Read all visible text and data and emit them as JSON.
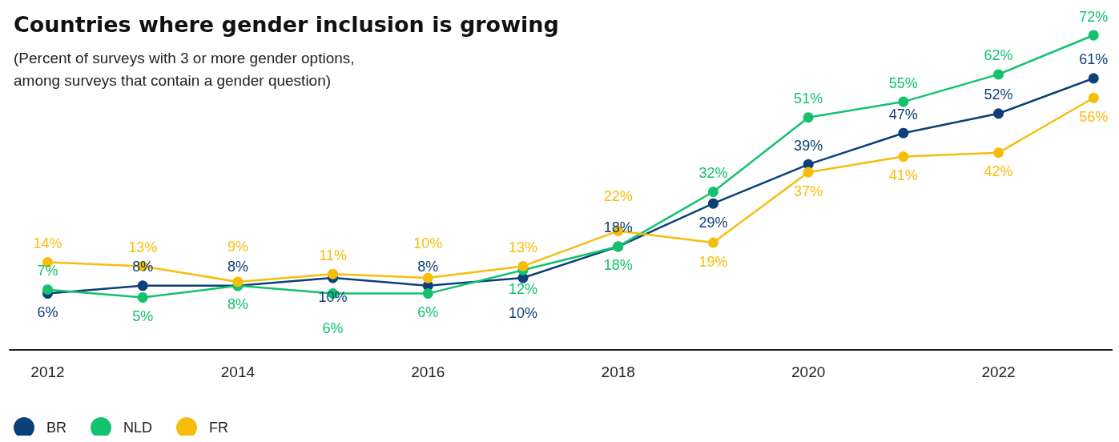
{
  "chart_data": {
    "type": "line",
    "title": "Countries where gender inclusion is growing",
    "subtitle": "(Percent of surveys with 3 or more gender options,\namong surveys that contain a gender question)",
    "x": [
      2012,
      2013,
      2014,
      2015,
      2016,
      2017,
      2018,
      2019,
      2020,
      2021,
      2022,
      2023
    ],
    "series": [
      {
        "name": "BR",
        "color": "#0b4078",
        "values": [
          6,
          8,
          8,
          10,
          8,
          10,
          18,
          29,
          39,
          47,
          52,
          61
        ],
        "value_labels": [
          "6%",
          "8%",
          "8%",
          "10%",
          "8%",
          "10%",
          "18%",
          "29%",
          "39%",
          "47%",
          "52%",
          "61%"
        ]
      },
      {
        "name": "NLD",
        "color": "#12c26f",
        "values": [
          7,
          5,
          8,
          6,
          6,
          12,
          18,
          32,
          51,
          55,
          62,
          72
        ],
        "value_labels": [
          "7%",
          "5%",
          "8%",
          "6%",
          "6%",
          "12%",
          "18%",
          "32%",
          "51%",
          "55%",
          "62%",
          "72%"
        ]
      },
      {
        "name": "FR",
        "color": "#f7bd0c",
        "values": [
          14,
          13,
          9,
          11,
          10,
          13,
          22,
          19,
          37,
          41,
          42,
          56
        ],
        "value_labels": [
          "14%",
          "13%",
          "9%",
          "11%",
          "10%",
          "13%",
          "22%",
          "19%",
          "37%",
          "41%",
          "42%",
          "56%"
        ]
      }
    ],
    "xlim": [
      2011.6,
      2023.2
    ],
    "xticks": [
      2012,
      2014,
      2016,
      2018,
      2020,
      2022
    ],
    "tick_labels": "x",
    "legend": "bottom left",
    "marker": "circle",
    "line_style": "solid",
    "grid": false
  }
}
